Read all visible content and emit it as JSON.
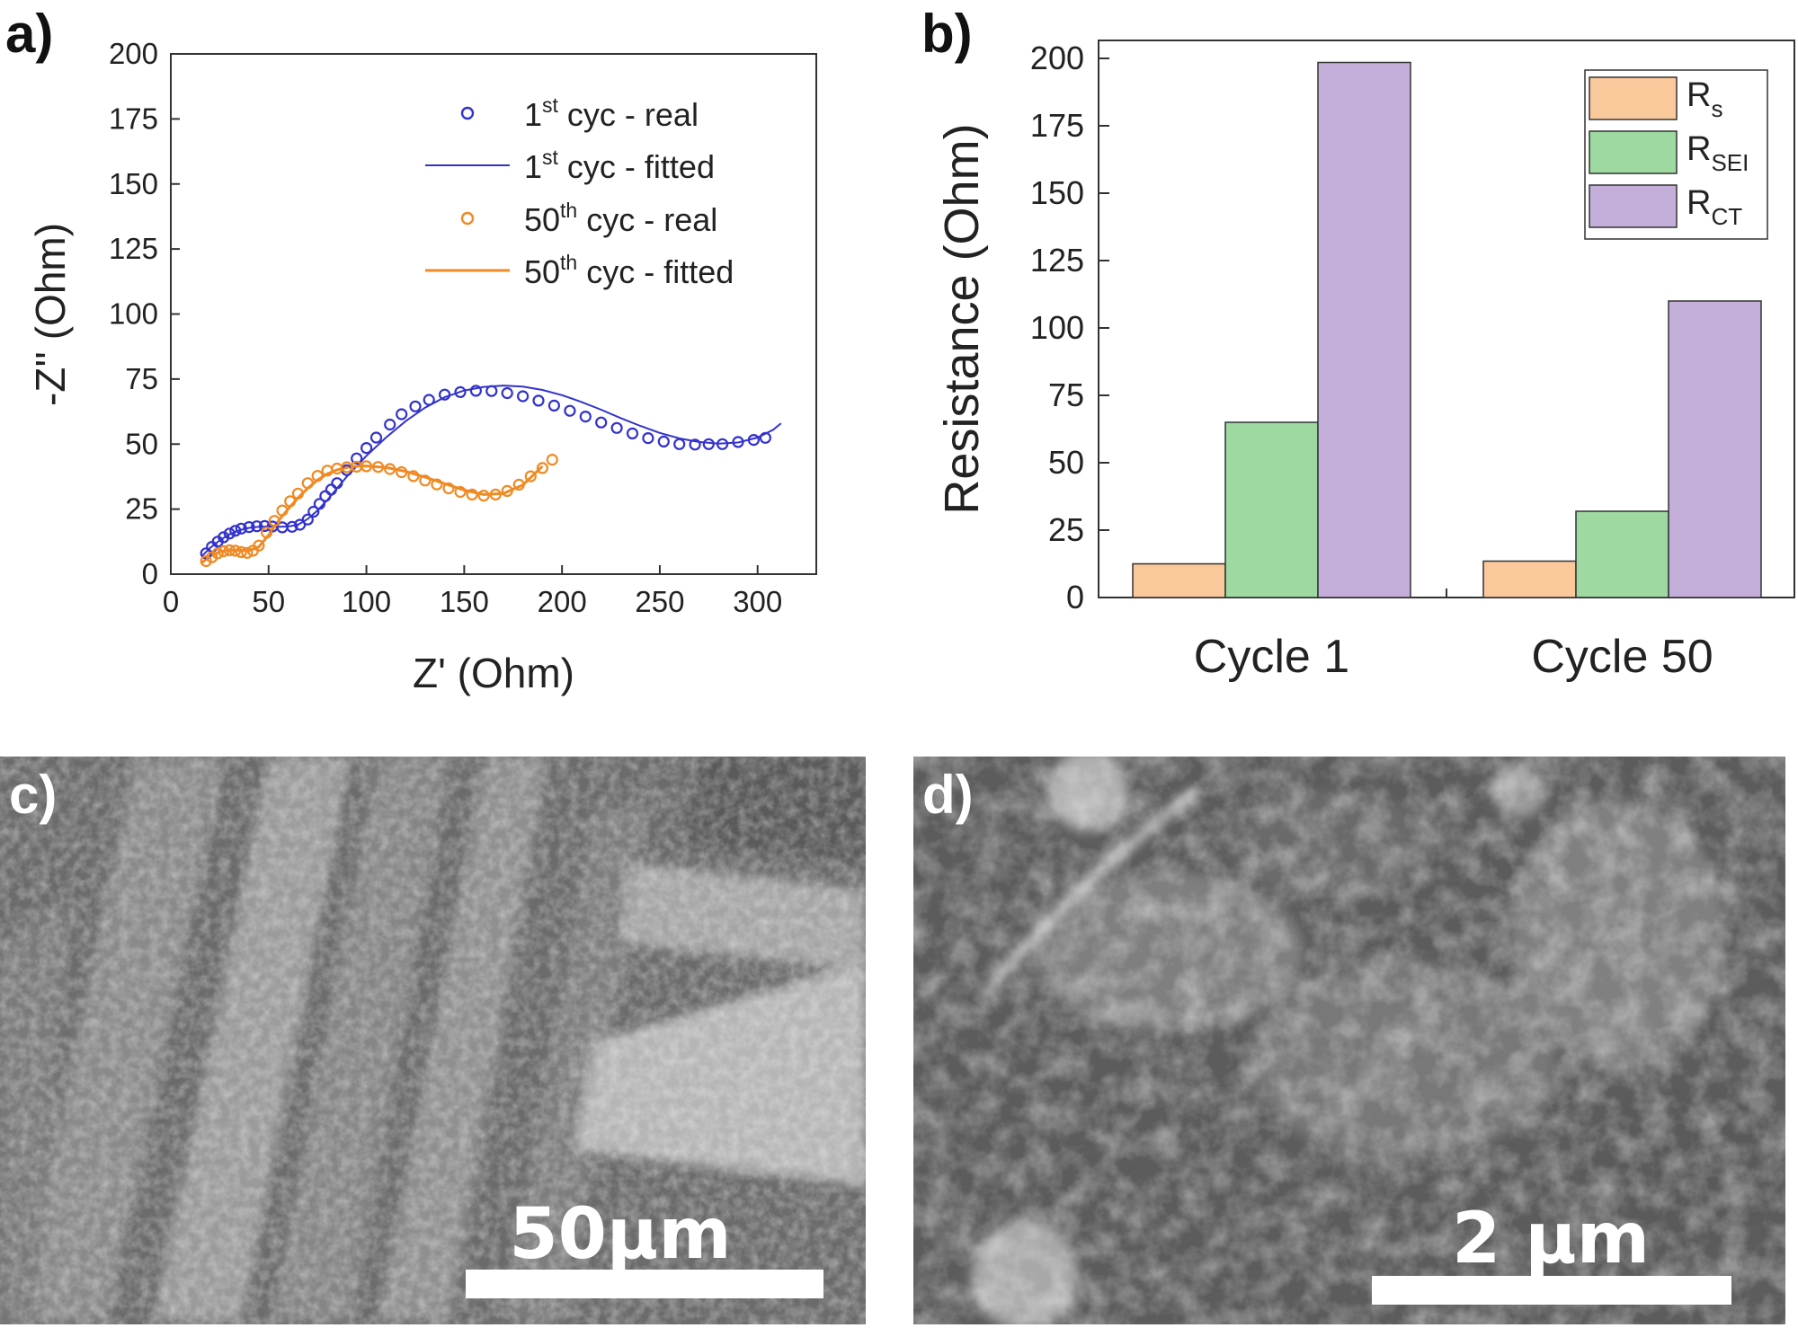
{
  "panels": {
    "a": "a)",
    "b": "b)",
    "c": "c)",
    "d": "d)"
  },
  "colors": {
    "blue": "#3333cc",
    "orange": "#f08a24",
    "rs": "#f9c89b",
    "rsei": "#9dd9a0",
    "rct": "#c3afd9"
  },
  "chart_data": [
    {
      "type": "scatter",
      "xlabel": "Z' (Ohm)",
      "ylabel": "-Z'' (Ohm)",
      "xlim": [
        0,
        330
      ],
      "ylim": [
        0,
        200
      ],
      "xticks": [
        0,
        50,
        100,
        150,
        200,
        250,
        300
      ],
      "yticks": [
        0,
        25,
        50,
        75,
        100,
        125,
        150,
        175,
        200
      ],
      "legend_position": "top-right",
      "legend": [
        {
          "sup_pre": "1",
          "sup": "st",
          "text": " cyc - real",
          "kind": "marker",
          "color": "#3333cc"
        },
        {
          "sup_pre": "1",
          "sup": "st",
          "text": " cyc - fitted",
          "kind": "line",
          "color": "#3333cc"
        },
        {
          "sup_pre": "50",
          "sup": "th",
          "text": " cyc - real",
          "kind": "marker",
          "color": "#f08a24"
        },
        {
          "sup_pre": "50",
          "sup": "th",
          "text": " cyc - fitted",
          "kind": "line",
          "color": "#f08a24"
        }
      ],
      "series": [
        {
          "name": "1st cyc - real",
          "style": "marker",
          "color": "#3333cc",
          "x": [
            18,
            21,
            24,
            27,
            30,
            33,
            36,
            40,
            44,
            48,
            52,
            57,
            62,
            66,
            70,
            73,
            76,
            79,
            82,
            85,
            90,
            95,
            100,
            105,
            112,
            118,
            125,
            132,
            140,
            148,
            156,
            164,
            172,
            180,
            188,
            196,
            204,
            212,
            220,
            228,
            236,
            244,
            252,
            260,
            268,
            275,
            282,
            290,
            298,
            304
          ],
          "y": [
            8,
            10.5,
            12.5,
            14.2,
            15.6,
            16.7,
            17.5,
            18.1,
            18.4,
            18.5,
            18.3,
            18,
            18.2,
            19,
            21,
            24,
            27,
            30,
            32.5,
            35,
            40,
            44.5,
            48.5,
            52.5,
            57.5,
            61.5,
            64.5,
            67,
            69,
            70,
            70.5,
            70.4,
            69.6,
            68.4,
            66.7,
            64.8,
            62.8,
            60.6,
            58.3,
            56.2,
            54.1,
            52.3,
            51,
            50,
            49.8,
            50,
            50,
            50.8,
            51.6,
            52.4
          ]
        },
        {
          "name": "1st cyc - fitted",
          "style": "line",
          "color": "#3333cc",
          "x": [
            16,
            20,
            25,
            30,
            35,
            40,
            45,
            50,
            55,
            60,
            65,
            70,
            75,
            80,
            85,
            90,
            95,
            100,
            110,
            120,
            130,
            140,
            150,
            160,
            170,
            180,
            190,
            200,
            210,
            220,
            230,
            240,
            250,
            260,
            270,
            280,
            290,
            300,
            308,
            312
          ],
          "y": [
            7,
            10,
            13,
            15.3,
            16.9,
            17.8,
            18.2,
            18.3,
            18.2,
            18.3,
            19,
            21.2,
            24.5,
            28.5,
            33,
            37.5,
            41.5,
            45.5,
            52.5,
            58.8,
            64,
            68,
            70.6,
            72,
            72.5,
            72.1,
            70.8,
            68.8,
            66.2,
            63.2,
            60,
            57,
            54.3,
            52.2,
            50.8,
            50.2,
            50.6,
            52.5,
            55.5,
            58
          ]
        },
        {
          "name": "50th cyc - real",
          "style": "marker",
          "color": "#f08a24",
          "x": [
            18,
            21,
            24,
            27,
            30,
            33,
            36,
            39,
            42,
            45,
            49,
            53,
            57,
            61,
            65,
            70,
            75,
            80,
            85,
            90,
            95,
            100,
            106,
            112,
            118,
            124,
            130,
            136,
            142,
            148,
            154,
            160,
            166,
            172,
            178,
            184,
            190,
            195
          ],
          "y": [
            5,
            6.5,
            8,
            8.8,
            9.2,
            9,
            8.5,
            8.2,
            9,
            11,
            16,
            20.5,
            24.5,
            28,
            31,
            35,
            37.8,
            39.8,
            40.6,
            41.1,
            41.3,
            41.5,
            41.2,
            40.4,
            39.2,
            37.7,
            36,
            34.5,
            33,
            31.6,
            30.6,
            30.2,
            30.6,
            32,
            34.4,
            37.6,
            40.8,
            44
          ]
        },
        {
          "name": "50th cyc - fitted",
          "style": "line",
          "color": "#f08a24",
          "x": [
            16,
            20,
            25,
            30,
            35,
            40,
            45,
            50,
            55,
            60,
            65,
            70,
            75,
            80,
            85,
            90,
            95,
            100,
            110,
            120,
            130,
            140,
            150,
            160,
            170,
            180,
            190
          ],
          "y": [
            4.5,
            6.8,
            8.6,
            9.3,
            9.2,
            9,
            10.5,
            15,
            20.5,
            25,
            29.3,
            33,
            36.2,
            38.6,
            40.1,
            41,
            41.5,
            41.6,
            41,
            39.5,
            37.3,
            34.8,
            32.3,
            30.6,
            31,
            34.3,
            41.5
          ]
        }
      ]
    },
    {
      "type": "bar",
      "ylabel": "Resistance (Ohm)",
      "ylim": [
        0,
        200
      ],
      "yticks": [
        0,
        25,
        50,
        75,
        100,
        125,
        150,
        175,
        200
      ],
      "categories": [
        "Cycle 1",
        "Cycle 50"
      ],
      "legend_position": "top-right",
      "series": [
        {
          "name": "R",
          "sub": "s",
          "color": "#f9c89b",
          "values": [
            12.5,
            13.5
          ]
        },
        {
          "name": "R",
          "sub": "SEI",
          "color": "#9dd9a0",
          "values": [
            65,
            32
          ]
        },
        {
          "name": "R",
          "sub": "CT",
          "color": "#c3afd9",
          "values": [
            198.5,
            110
          ]
        }
      ]
    }
  ],
  "images": {
    "c": {
      "scale_label": "50µm"
    },
    "d": {
      "scale_label": "2 µm"
    }
  }
}
